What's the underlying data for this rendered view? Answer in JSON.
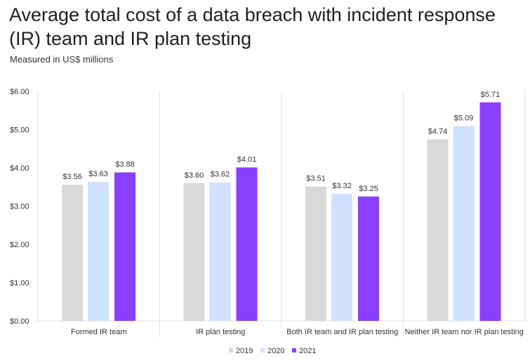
{
  "chart_data": {
    "type": "bar",
    "title": "Average total cost of a data breach with incident response (IR) team and IR plan testing",
    "subtitle": "Measured in US$ millions",
    "categories": [
      "Formed IR team",
      "IR plan testing",
      "Both IR team and IR plan testing",
      "Neither IR team nor IR plan testing"
    ],
    "series": [
      {
        "name": "2019",
        "color": "#d9d9d9",
        "values": [
          3.56,
          3.6,
          3.51,
          4.74
        ]
      },
      {
        "name": "2020",
        "color": "#d0e2ff",
        "values": [
          3.63,
          3.62,
          3.32,
          5.09
        ]
      },
      {
        "name": "2021",
        "color": "#8a3ffc",
        "values": [
          3.88,
          4.01,
          3.25,
          5.71
        ]
      }
    ],
    "yticks": [
      "$0.00",
      "$1.00",
      "$2.00",
      "$3.00",
      "$4.00",
      "$5.00",
      "$6.00"
    ],
    "ylim": [
      0,
      6
    ],
    "xlabel": "",
    "ylabel": "",
    "grid": false,
    "legend": "bottom-center"
  }
}
